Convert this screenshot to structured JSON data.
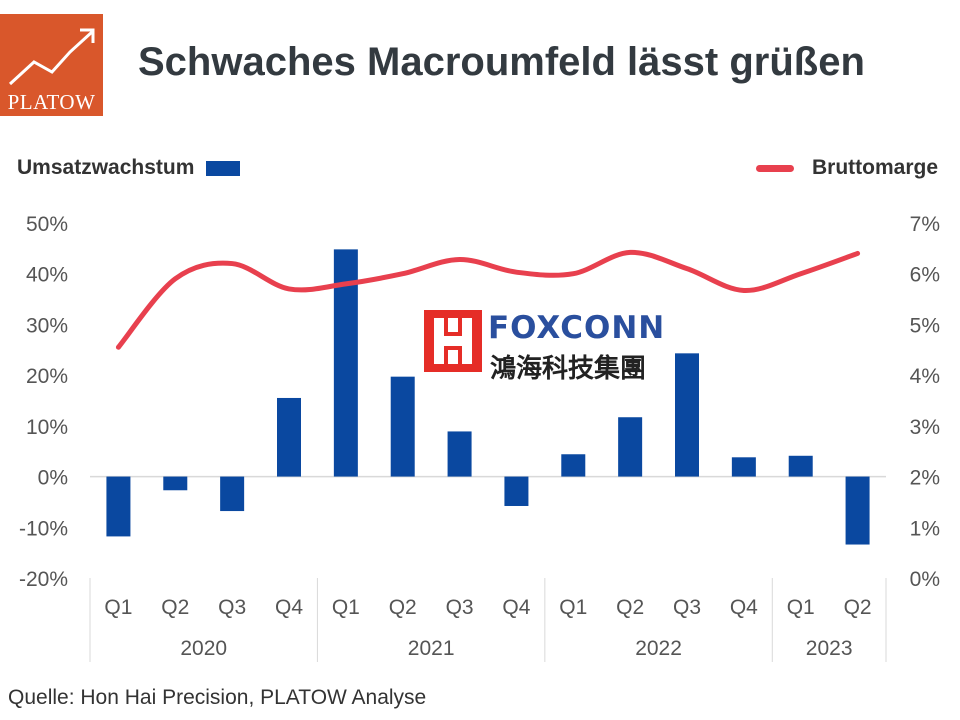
{
  "header": {
    "logo_text": "PLATOW",
    "title": "Schwaches Macroumfeld lässt grüßen"
  },
  "legend": {
    "left_label": "Umsatzwachstum",
    "right_label": "Bruttomarge"
  },
  "colors": {
    "bar": "#0a48a0",
    "line": "#e8404e",
    "logo_bg": "#d9572b",
    "axis": "#d9d9d9"
  },
  "watermark": {
    "brand": "FOXCONN",
    "chinese": "鴻海科技集團"
  },
  "footer": {
    "source": "Quelle: Hon Hai Precision, PLATOW Analyse"
  },
  "chart_data": {
    "type": "bar",
    "categories": [
      "Q1",
      "Q2",
      "Q3",
      "Q4",
      "Q1",
      "Q2",
      "Q3",
      "Q4",
      "Q1",
      "Q2",
      "Q3",
      "Q4",
      "Q1",
      "Q2"
    ],
    "year_groups": [
      {
        "label": "2020",
        "count": 4
      },
      {
        "label": "2021",
        "count": 4
      },
      {
        "label": "2022",
        "count": 4
      },
      {
        "label": "2023",
        "count": 2
      }
    ],
    "series": [
      {
        "name": "Umsatzwachstum",
        "type": "bar",
        "axis": "left",
        "values": [
          -11.8,
          -2.7,
          -6.8,
          15.5,
          44.8,
          19.7,
          8.9,
          -5.8,
          4.4,
          11.7,
          24.3,
          3.8,
          4.1,
          -13.4
        ]
      },
      {
        "name": "Bruttomarge",
        "type": "line",
        "axis": "right",
        "values": [
          4.55,
          5.9,
          6.2,
          5.7,
          5.8,
          6.0,
          6.28,
          6.03,
          6.0,
          6.42,
          6.1,
          5.67,
          6.0,
          6.4
        ]
      }
    ],
    "y_left": {
      "min": -20,
      "max": 50,
      "step": 10,
      "ticks": [
        "-20%",
        "-10%",
        "0%",
        "10%",
        "20%",
        "30%",
        "40%",
        "50%"
      ]
    },
    "y_right": {
      "min": 0,
      "max": 7,
      "step": 1,
      "ticks": [
        "0%",
        "1%",
        "2%",
        "3%",
        "4%",
        "5%",
        "6%",
        "7%"
      ]
    },
    "grid": false,
    "legend_placement": "top"
  }
}
